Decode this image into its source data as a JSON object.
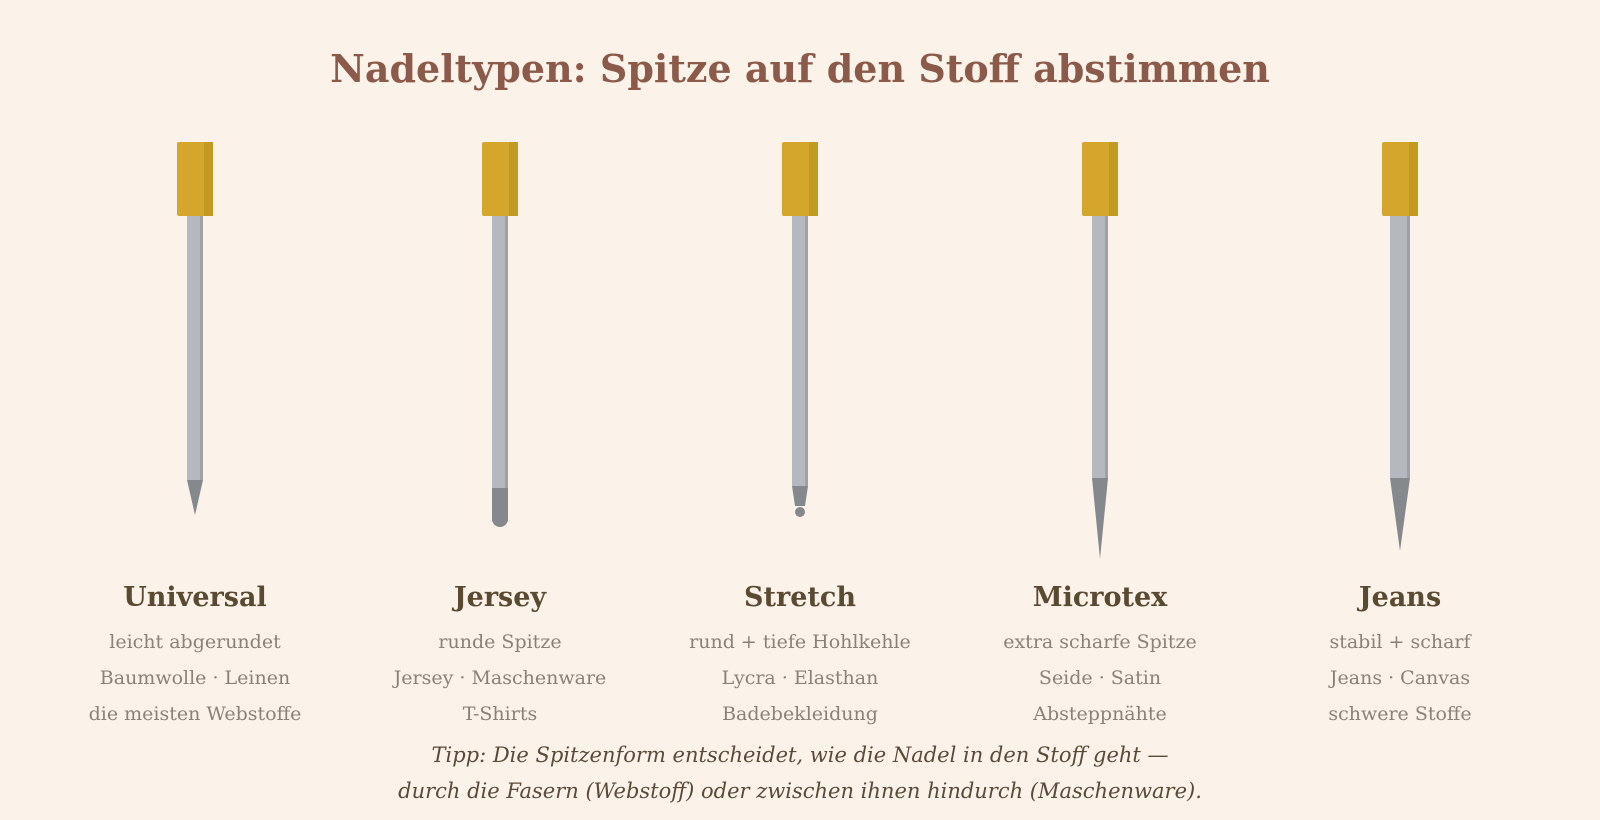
{
  "title": "Nadeltypen: Spitze auf den Stoff abstimmen",
  "needles": [
    {
      "name": "Universal",
      "lines": [
        "leicht abgerundet",
        "Baumwolle · Leinen",
        "die meisten Webstoffe"
      ]
    },
    {
      "name": "Jersey",
      "lines": [
        "runde Spitze",
        "Jersey · Maschenware",
        "T-Shirts"
      ]
    },
    {
      "name": "Stretch",
      "lines": [
        "rund + tiefe Hohlkehle",
        "Lycra · Elasthan",
        "Badebekleidung"
      ]
    },
    {
      "name": "Microtex",
      "lines": [
        "extra scharfe Spitze",
        "Seide · Satin",
        "Absteppnähte"
      ]
    },
    {
      "name": "Jeans",
      "lines": [
        "stabil + scharf",
        "Jeans · Canvas",
        "schwere Stoffe"
      ]
    }
  ],
  "tip": [
    "Tipp: Die Spitzenform entscheidet, wie die Nadel in den Stoff geht —",
    "durch die Fasern (Webstoff) oder zwischen ihnen hindurch (Maschenware)."
  ]
}
